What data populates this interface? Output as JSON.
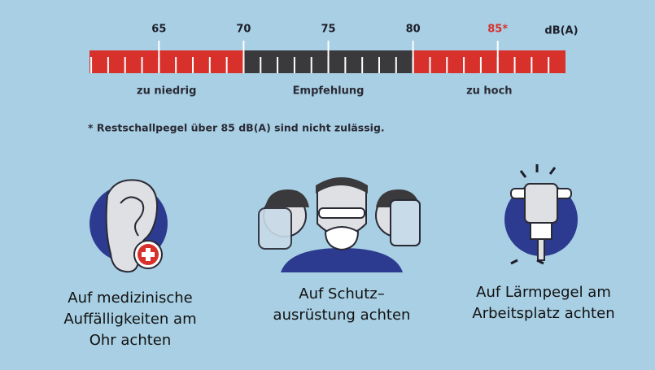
{
  "scale": {
    "unit": "dB(A)",
    "xlim": [
      60.9,
      89
    ],
    "ticks": [
      65,
      70,
      75,
      80,
      {
        "value": 85,
        "label": "85*"
      }
    ],
    "zones": [
      {
        "label": "zu niedrig",
        "from": 60.9,
        "to": 70,
        "color": "#d8302b"
      },
      {
        "label": "Empfehlung",
        "from": 70,
        "to": 80,
        "color": "#3a3a3c"
      },
      {
        "label": "zu hoch",
        "from": 80,
        "to": 89,
        "color": "#d8302b"
      }
    ]
  },
  "footnote": "* Restschallpegel über 85 dB(A) sind nicht zulässig.",
  "items": [
    {
      "lines": [
        "Auf medizinische",
        "Auffälligkeiten am",
        "Ohr achten"
      ]
    },
    {
      "lines": [
        "Auf Schutz–",
        "ausrüstung achten"
      ]
    },
    {
      "lines": [
        "Auf Lärmpegel am",
        "Arbeitsplatz achten"
      ]
    }
  ]
}
